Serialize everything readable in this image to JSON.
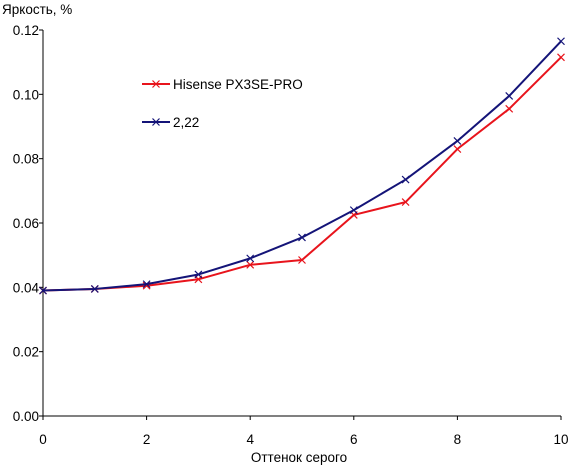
{
  "chart_data": {
    "type": "line",
    "ylabel": "Яркость, %",
    "xlabel": "Оттенок серого",
    "xlim": [
      0,
      10
    ],
    "ylim": [
      0,
      0.12
    ],
    "x_ticks": [
      0,
      2,
      4,
      6,
      8,
      10
    ],
    "x_tick_labels": [
      "0",
      "2",
      "4",
      "6",
      "8",
      "10"
    ],
    "y_ticks": [
      0,
      0.02,
      0.04,
      0.06,
      0.08,
      0.1,
      0.12
    ],
    "y_tick_labels": [
      "0.00",
      "0.02",
      "0.04",
      "0.06",
      "0.08",
      "0.10",
      "0.12"
    ],
    "grid": false,
    "legend_position": "upper-left inside plot",
    "x": [
      0,
      1,
      2,
      3,
      4,
      5,
      6,
      7,
      8,
      9,
      10
    ],
    "series": [
      {
        "name": "Hisense PX3SE-PRO",
        "color": "#e8141c",
        "marker": "x",
        "values": [
          0.039,
          0.0395,
          0.0405,
          0.0425,
          0.047,
          0.0485,
          0.0625,
          0.0665,
          0.083,
          0.0955,
          0.1115
        ]
      },
      {
        "name": "2,22",
        "color": "#141478",
        "marker": "x",
        "values": [
          0.039,
          0.0395,
          0.041,
          0.044,
          0.049,
          0.0555,
          0.064,
          0.0735,
          0.0855,
          0.0995,
          0.1165
        ]
      }
    ]
  }
}
